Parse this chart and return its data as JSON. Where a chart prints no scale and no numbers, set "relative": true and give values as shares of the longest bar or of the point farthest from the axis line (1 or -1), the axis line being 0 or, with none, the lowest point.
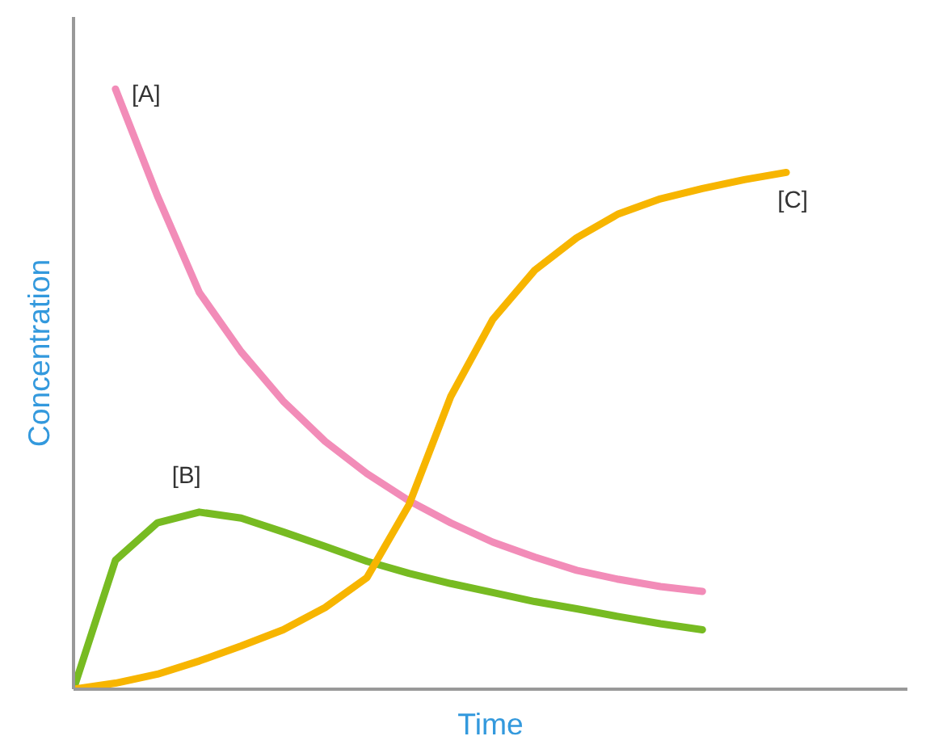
{
  "chart_data": {
    "type": "line",
    "relative": true,
    "xlabel": "Time",
    "ylabel": "Concentration",
    "grid": false,
    "line_style": "solid",
    "tick_labels": false,
    "categories": [
      null,
      null,
      null,
      null,
      null,
      null,
      null,
      null,
      null,
      null,
      null,
      null,
      null,
      null,
      null,
      null,
      null,
      null
    ],
    "series": [
      {
        "name": "[A]",
        "color": "#f28cb8",
        "values": [
          null,
          1.0,
          0.822,
          0.661,
          0.562,
          0.48,
          0.413,
          0.359,
          0.314,
          0.277,
          0.245,
          0.22,
          0.198,
          0.183,
          0.171,
          0.163,
          null,
          null
        ]
      },
      {
        "name": "[B]",
        "color": "#77bb22",
        "values": [
          0,
          0.215,
          0.277,
          0.295,
          0.285,
          0.262,
          0.238,
          0.213,
          0.193,
          0.176,
          0.161,
          0.146,
          0.134,
          0.121,
          0.109,
          0.099,
          null,
          null
        ]
      },
      {
        "name": "[C]",
        "color": "#f7b500",
        "values": [
          0,
          0.01,
          0.025,
          0.047,
          0.072,
          0.099,
          0.136,
          0.186,
          0.307,
          0.488,
          0.616,
          0.698,
          0.752,
          0.792,
          0.817,
          0.834,
          0.849,
          0.861
        ]
      }
    ]
  }
}
